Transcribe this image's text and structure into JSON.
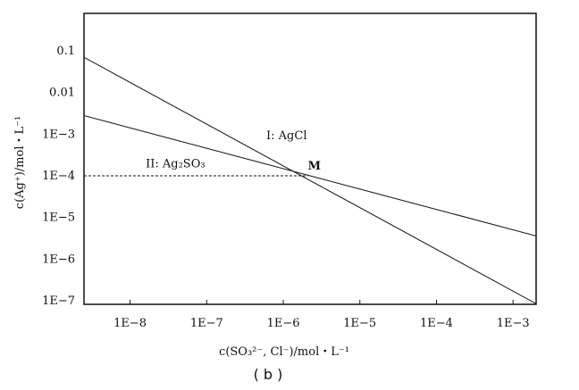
{
  "chart_data": {
    "type": "line",
    "x_scale": "log",
    "y_scale": "log",
    "xlim": [
      2.5e-09,
      0.002
    ],
    "ylim": [
      1e-07,
      0.1
    ],
    "xticks": [
      {
        "value": 1e-08,
        "label": "1E−8"
      },
      {
        "value": 1e-07,
        "label": "1E−7"
      },
      {
        "value": 1e-06,
        "label": "1E−6"
      },
      {
        "value": 1e-05,
        "label": "1E−5"
      },
      {
        "value": 0.0001,
        "label": "1E−4"
      },
      {
        "value": 0.001,
        "label": "1E−3"
      }
    ],
    "yticks": [
      {
        "value": 1e-07,
        "label": "1E−7"
      },
      {
        "value": 1e-06,
        "label": "1E−6"
      },
      {
        "value": 1e-05,
        "label": "1E−5"
      },
      {
        "value": 0.0001,
        "label": "1E−4"
      },
      {
        "value": 0.001,
        "label": "1E−3"
      },
      {
        "value": 0.01,
        "label": "0.01"
      },
      {
        "value": 0.1,
        "label": "0.1"
      }
    ],
    "xlabel": "c(SO₃²⁻, Cl⁻)/mol・L⁻¹",
    "ylabel": "c(Ag⁺)/mol・L⁻¹",
    "series": [
      {
        "name": "I: AgCl",
        "x": [
          2.5e-09,
          0.002
        ],
        "y": [
          0.07,
          8.5e-08
        ],
        "color": "#222222"
      },
      {
        "name": "II: Ag₂SO₃",
        "x": [
          2.5e-09,
          0.002
        ],
        "y": [
          0.0028,
          3.6e-06
        ],
        "color": "#222222"
      }
    ],
    "annotations": [
      {
        "text": "I: AgCl",
        "x": 6e-07,
        "y": 0.00075
      },
      {
        "text": "II: Ag₂SO₃",
        "x": 1.6e-08,
        "y": 0.00016
      },
      {
        "text": "M",
        "x": 2.1e-06,
        "y": 0.00014
      }
    ],
    "reference_line": {
      "y": 0.0001,
      "x_from": 2.5e-09,
      "x_to": 2.1e-06,
      "style": "dashed"
    },
    "point_M": {
      "x": 2.1e-06,
      "y": 0.0001
    }
  },
  "caption": "( b )"
}
